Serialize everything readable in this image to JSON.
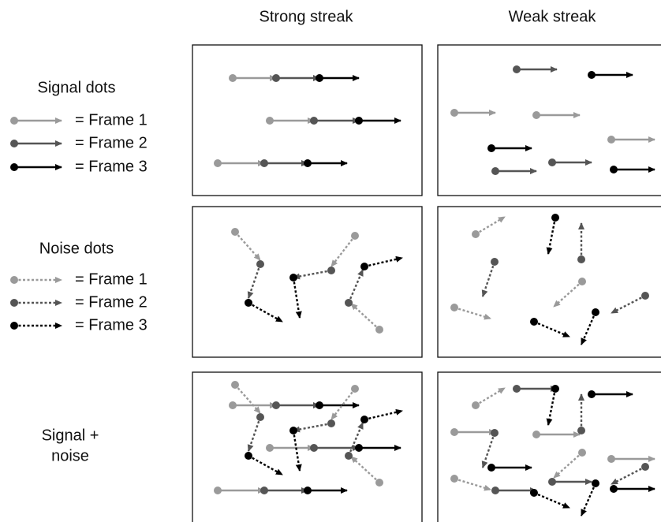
{
  "columns": [
    "Strong streak",
    "Weak streak"
  ],
  "rows": [
    {
      "label": [
        "Signal dots"
      ],
      "legend": [
        "= Frame 1",
        "= Frame 2",
        "= Frame 3"
      ]
    },
    {
      "label": [
        "Noise dots"
      ],
      "legend": [
        "= Frame 1",
        "= Frame 2",
        "= Frame 3"
      ]
    },
    {
      "label": [
        "Signal +",
        "noise"
      ]
    }
  ]
}
